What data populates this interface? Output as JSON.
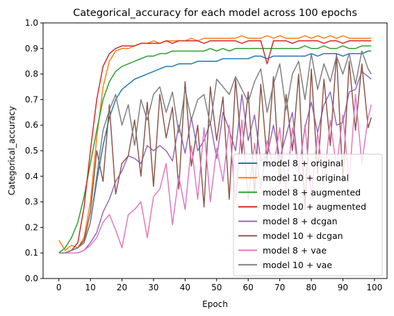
{
  "chart_data": {
    "type": "line",
    "title": "Categorical_accuracy for each model across 100 epochs",
    "xlabel": "Epoch",
    "ylabel": "Categorical_accuracy",
    "xlim": [
      -5,
      104
    ],
    "ylim": [
      0.0,
      1.0
    ],
    "xticks": [
      0,
      10,
      20,
      30,
      40,
      50,
      60,
      70,
      80,
      90,
      100
    ],
    "yticks": [
      0.0,
      0.1,
      0.2,
      0.3,
      0.4,
      0.5,
      0.6,
      0.7,
      0.8,
      0.9,
      1.0
    ],
    "legend_position": "lower-right",
    "x": [
      0,
      2,
      4,
      6,
      8,
      10,
      12,
      14,
      16,
      18,
      20,
      22,
      24,
      26,
      28,
      30,
      32,
      34,
      36,
      38,
      40,
      42,
      44,
      46,
      48,
      50,
      52,
      54,
      56,
      58,
      60,
      62,
      64,
      66,
      68,
      70,
      72,
      74,
      76,
      78,
      80,
      82,
      84,
      86,
      88,
      90,
      92,
      94,
      96,
      98,
      99
    ],
    "series": [
      {
        "name": "model 8 + original",
        "color": "#1f77b4",
        "values": [
          0.1,
          0.1,
          0.11,
          0.12,
          0.14,
          0.22,
          0.38,
          0.52,
          0.63,
          0.7,
          0.74,
          0.76,
          0.78,
          0.79,
          0.8,
          0.81,
          0.82,
          0.83,
          0.83,
          0.84,
          0.84,
          0.84,
          0.85,
          0.85,
          0.85,
          0.85,
          0.86,
          0.86,
          0.86,
          0.86,
          0.86,
          0.87,
          0.87,
          0.86,
          0.87,
          0.87,
          0.87,
          0.87,
          0.87,
          0.87,
          0.88,
          0.87,
          0.88,
          0.88,
          0.88,
          0.87,
          0.88,
          0.88,
          0.88,
          0.89,
          0.89
        ]
      },
      {
        "name": "model 10 + original",
        "color": "#ff7f0e",
        "values": [
          0.15,
          0.11,
          0.13,
          0.12,
          0.16,
          0.3,
          0.55,
          0.75,
          0.85,
          0.89,
          0.9,
          0.9,
          0.91,
          0.92,
          0.92,
          0.93,
          0.92,
          0.93,
          0.93,
          0.93,
          0.93,
          0.94,
          0.93,
          0.94,
          0.94,
          0.94,
          0.94,
          0.94,
          0.94,
          0.95,
          0.94,
          0.94,
          0.94,
          0.95,
          0.94,
          0.95,
          0.94,
          0.94,
          0.94,
          0.95,
          0.94,
          0.95,
          0.94,
          0.95,
          0.94,
          0.95,
          0.94,
          0.94,
          0.94,
          0.94,
          0.94
        ]
      },
      {
        "name": "model 8 + augmented",
        "color": "#2ca02c",
        "values": [
          0.1,
          0.12,
          0.16,
          0.22,
          0.32,
          0.45,
          0.58,
          0.7,
          0.77,
          0.81,
          0.83,
          0.84,
          0.85,
          0.86,
          0.87,
          0.87,
          0.88,
          0.88,
          0.89,
          0.89,
          0.89,
          0.89,
          0.89,
          0.89,
          0.9,
          0.89,
          0.9,
          0.89,
          0.9,
          0.9,
          0.9,
          0.9,
          0.9,
          0.9,
          0.9,
          0.9,
          0.9,
          0.9,
          0.9,
          0.91,
          0.9,
          0.9,
          0.91,
          0.9,
          0.9,
          0.91,
          0.9,
          0.9,
          0.91,
          0.91,
          0.91
        ]
      },
      {
        "name": "model 10 + augmented",
        "color": "#d62728",
        "values": [
          0.1,
          0.1,
          0.11,
          0.14,
          0.28,
          0.5,
          0.7,
          0.83,
          0.88,
          0.9,
          0.91,
          0.91,
          0.91,
          0.92,
          0.92,
          0.92,
          0.92,
          0.93,
          0.92,
          0.93,
          0.93,
          0.93,
          0.93,
          0.92,
          0.93,
          0.93,
          0.93,
          0.93,
          0.93,
          0.92,
          0.93,
          0.93,
          0.93,
          0.84,
          0.93,
          0.93,
          0.93,
          0.92,
          0.93,
          0.93,
          0.93,
          0.93,
          0.92,
          0.93,
          0.93,
          0.92,
          0.93,
          0.93,
          0.93,
          0.93,
          0.93
        ]
      },
      {
        "name": "model 8 + dcgan",
        "color": "#9467bd",
        "values": [
          0.1,
          0.1,
          0.1,
          0.1,
          0.11,
          0.14,
          0.18,
          0.26,
          0.31,
          0.38,
          0.42,
          0.48,
          0.47,
          0.45,
          0.52,
          0.5,
          0.52,
          0.5,
          0.46,
          0.6,
          0.49,
          0.63,
          0.5,
          0.54,
          0.61,
          0.47,
          0.65,
          0.58,
          0.5,
          0.72,
          0.54,
          0.64,
          0.46,
          0.48,
          0.6,
          0.47,
          0.56,
          0.65,
          0.42,
          0.59,
          0.69,
          0.57,
          0.68,
          0.73,
          0.6,
          0.61,
          0.73,
          0.74,
          0.81,
          0.79,
          0.78
        ]
      },
      {
        "name": "model 10 + dcgan",
        "color": "#8c564b",
        "values": [
          0.1,
          0.1,
          0.11,
          0.12,
          0.15,
          0.26,
          0.5,
          0.38,
          0.68,
          0.33,
          0.45,
          0.48,
          0.62,
          0.4,
          0.69,
          0.36,
          0.72,
          0.55,
          0.67,
          0.35,
          0.77,
          0.44,
          0.6,
          0.28,
          0.75,
          0.54,
          0.71,
          0.31,
          0.78,
          0.49,
          0.73,
          0.33,
          0.76,
          0.46,
          0.79,
          0.37,
          0.72,
          0.5,
          0.8,
          0.27,
          0.82,
          0.41,
          0.78,
          0.52,
          0.88,
          0.38,
          0.85,
          0.58,
          0.84,
          0.59,
          0.63
        ]
      },
      {
        "name": "model 8 + vae",
        "color": "#e377c2",
        "values": [
          0.1,
          0.1,
          0.1,
          0.1,
          0.11,
          0.13,
          0.16,
          0.22,
          0.25,
          0.19,
          0.12,
          0.25,
          0.27,
          0.3,
          0.16,
          0.32,
          0.35,
          0.45,
          0.21,
          0.4,
          0.27,
          0.52,
          0.31,
          0.59,
          0.3,
          0.51,
          0.38,
          0.6,
          0.3,
          0.62,
          0.31,
          0.53,
          0.35,
          0.54,
          0.43,
          0.59,
          0.34,
          0.59,
          0.41,
          0.6,
          0.32,
          0.57,
          0.37,
          0.62,
          0.43,
          0.64,
          0.38,
          0.72,
          0.45,
          0.63,
          0.68
        ]
      },
      {
        "name": "model 10 + vae",
        "color": "#7f7f7f",
        "values": [
          0.1,
          0.1,
          0.11,
          0.12,
          0.14,
          0.22,
          0.4,
          0.58,
          0.66,
          0.72,
          0.6,
          0.68,
          0.52,
          0.7,
          0.62,
          0.72,
          0.75,
          0.65,
          0.73,
          0.57,
          0.74,
          0.62,
          0.7,
          0.72,
          0.6,
          0.78,
          0.75,
          0.72,
          0.79,
          0.74,
          0.69,
          0.77,
          0.82,
          0.65,
          0.76,
          0.84,
          0.66,
          0.8,
          0.85,
          0.7,
          0.88,
          0.74,
          0.84,
          0.77,
          0.87,
          0.8,
          0.88,
          0.76,
          0.89,
          0.82,
          0.8
        ]
      }
    ]
  }
}
